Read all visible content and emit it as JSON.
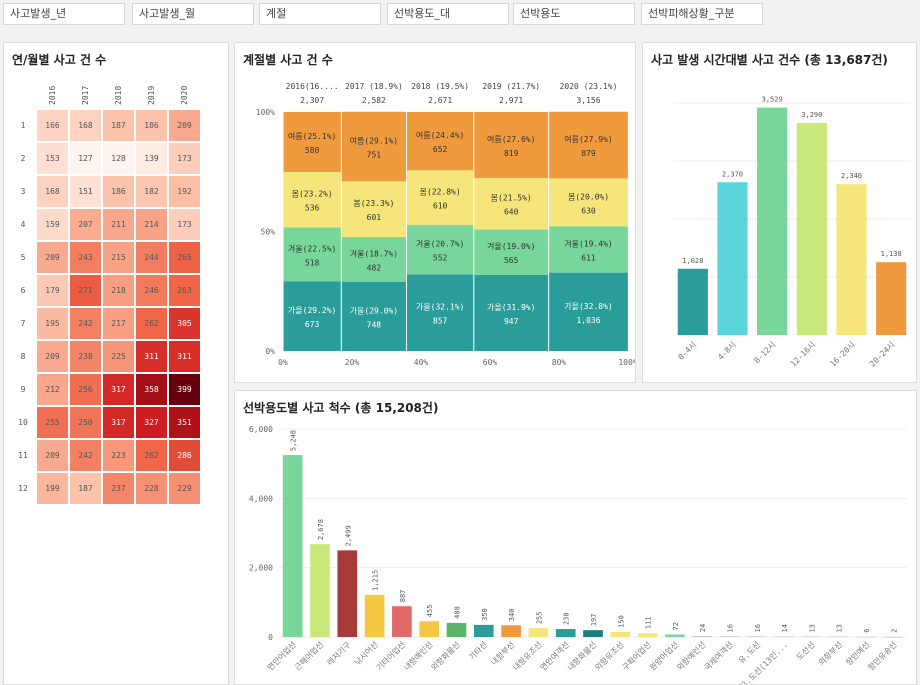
{
  "filters": [
    "사고발생_년",
    "사고발생_월",
    "계절",
    "선박용도_대",
    "선박용도",
    "선박피해상황_구분"
  ],
  "heatmap": {
    "title": "연/월별 사고 건 수",
    "years": [
      "2016",
      "2017",
      "2018",
      "2019",
      "2020"
    ],
    "months": [
      "1",
      "2",
      "3",
      "4",
      "5",
      "6",
      "7",
      "8",
      "9",
      "10",
      "11",
      "12"
    ],
    "values": [
      [
        166,
        168,
        187,
        186,
        209
      ],
      [
        153,
        127,
        128,
        139,
        173
      ],
      [
        168,
        151,
        186,
        182,
        192
      ],
      [
        159,
        207,
        211,
        214,
        173
      ],
      [
        209,
        243,
        215,
        244,
        265
      ],
      [
        179,
        271,
        218,
        246,
        263
      ],
      [
        195,
        242,
        217,
        262,
        305
      ],
      [
        209,
        238,
        225,
        311,
        311
      ],
      [
        212,
        256,
        317,
        358,
        399
      ],
      [
        255,
        250,
        317,
        327,
        351
      ],
      [
        209,
        242,
        223,
        262,
        286
      ],
      [
        199,
        187,
        237,
        228,
        229
      ]
    ]
  },
  "chart_data": [
    {
      "type": "bar",
      "subtype": "marimekko",
      "title": "계절별 사고 건 수",
      "columns": [
        {
          "label": "2016(16....",
          "total": "2,307",
          "width_pct": 16.9
        },
        {
          "label": "2017 (18.9%)",
          "total": "2,582",
          "width_pct": 18.9
        },
        {
          "label": "2018 (19.5%)",
          "total": "2,671",
          "width_pct": 19.5
        },
        {
          "label": "2019 (21.7%)",
          "total": "2,971",
          "width_pct": 21.7
        },
        {
          "label": "2020 (23.1%)",
          "total": "3,156",
          "width_pct": 23.1
        }
      ],
      "series": [
        {
          "name": "가을",
          "color": "#2a9d9a",
          "pcts": [
            29.2,
            29.0,
            32.1,
            31.9,
            32.8
          ],
          "labels": [
            "가을(29.2%)",
            "가을(29.0%)",
            "가을(32.1%)",
            "가을(31.9%)",
            "가을(32.8%)"
          ],
          "values": [
            "673",
            "748",
            "857",
            "947",
            "1,036"
          ]
        },
        {
          "name": "겨울",
          "color": "#78d69a",
          "pcts": [
            22.5,
            18.7,
            20.7,
            19.0,
            19.4
          ],
          "labels": [
            "겨울(22.5%)",
            "겨울(18.7%)",
            "겨울(20.7%)",
            "겨울(19.0%)",
            "겨울(19.4%)"
          ],
          "values": [
            "518",
            "482",
            "552",
            "565",
            "611"
          ]
        },
        {
          "name": "봄",
          "color": "#f5e57a",
          "pcts": [
            23.2,
            23.3,
            22.8,
            21.5,
            20.0
          ],
          "labels": [
            "봄(23.2%)",
            "봄(23.3%)",
            "봄(22.8%)",
            "봄(21.5%)",
            "봄(20.0%)"
          ],
          "values": [
            "536",
            "601",
            "610",
            "640",
            "630"
          ]
        },
        {
          "name": "여름",
          "color": "#f09a3e",
          "pcts": [
            25.1,
            29.1,
            24.4,
            27.6,
            27.9
          ],
          "labels": [
            "여름(25.1%)",
            "여름(29.1%)",
            "여름(24.4%)",
            "여름(27.6%)",
            "여름(27.9%)"
          ],
          "values": [
            "580",
            "751",
            "652",
            "819",
            "879"
          ]
        }
      ],
      "y_ticks": [
        "0%",
        "50%",
        "100%"
      ],
      "x_ticks": [
        "0%",
        "20%",
        "40%",
        "60%",
        "80%",
        "100%"
      ]
    },
    {
      "type": "bar",
      "title": "사고 발생 시간대별 사고 건수 (총 13,687건)",
      "categories": [
        "0-4시",
        "4-8시",
        "8-12시",
        "12-16시",
        "16-20시",
        "20-24시"
      ],
      "values": [
        1028,
        2370,
        3529,
        3290,
        2340,
        1130
      ],
      "value_labels": [
        "1,028",
        "2,370",
        "3,529",
        "3,290",
        "2,340",
        "1,130"
      ],
      "colors": [
        "#2a9d9a",
        "#5bd4dc",
        "#78d69a",
        "#c9e87a",
        "#f5e57a",
        "#f09a3e"
      ],
      "ylim": [
        0,
        3600
      ]
    },
    {
      "type": "bar",
      "title": "선박용도별 사고 척수 (총 15,208건)",
      "categories": [
        "연안어업선",
        "근해어업선",
        "레저기구",
        "낚시어선",
        "기타어업선",
        "내항예인선",
        "외항화물선",
        "기타선",
        "내항부선",
        "내항유조선",
        "연안여객선",
        "내항화물선",
        "외항유조선",
        "구획어업선",
        "원양어업선",
        "외항예인선",
        "국제여객선",
        "유.도선",
        "유.도선(13인...",
        "도선선",
        "외항부선",
        "항만예선",
        "항만유송선"
      ],
      "values": [
        5248,
        2678,
        2499,
        1215,
        887,
        455,
        408,
        350,
        340,
        255,
        230,
        197,
        150,
        111,
        72,
        24,
        16,
        16,
        14,
        13,
        13,
        6,
        2
      ],
      "value_labels": [
        "5,248",
        "2,678",
        "2,499",
        "1,215",
        "887",
        "455",
        "408",
        "350",
        "340",
        "255",
        "230",
        "197",
        "150",
        "111",
        "72",
        "24",
        "16",
        "16",
        "14",
        "13",
        "13",
        "6",
        "2"
      ],
      "colors": [
        "#78d69a",
        "#c9e87a",
        "#a83a3a",
        "#f5c842",
        "#e06a6a",
        "#f5c842",
        "#5bb56a",
        "#2a9d9a",
        "#f09a3e",
        "#f5e57a",
        "#2a9d9a",
        "#1f7f7f",
        "#f5e57a",
        "#f5e57a",
        "#78d69a",
        "#bbbbbb",
        "#bbbbbb",
        "#bbbbbb",
        "#bbbbbb",
        "#bbbbbb",
        "#bbbbbb",
        "#bbbbbb",
        "#bbbbbb"
      ],
      "y_ticks": [
        "0",
        "2,000",
        "4,000",
        "6,000"
      ],
      "ylim": [
        0,
        6000
      ]
    }
  ]
}
